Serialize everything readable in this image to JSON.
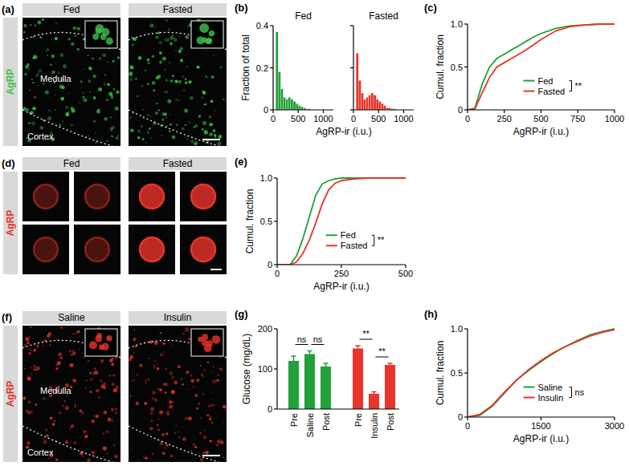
{
  "chart_data": [
    {
      "type": "histogram",
      "panel": "(b)",
      "title": "Fed",
      "x_label": "AgRP-ir (i.u.)",
      "y_label": "Fraction of total",
      "bins": [
        0,
        50,
        100,
        150,
        200,
        250,
        300,
        350,
        400,
        450,
        500,
        550,
        600,
        650,
        700,
        750,
        800,
        850,
        900,
        950,
        1000
      ],
      "values": [
        0,
        0.37,
        0.18,
        0.1,
        0.06,
        0.05,
        0.06,
        0.05,
        0.04,
        0.03,
        0.02,
        0.015,
        0.01,
        0.005,
        0.005,
        0,
        0,
        0,
        0,
        0
      ],
      "color": "#23a03a",
      "xlim": [
        0,
        1200
      ],
      "xticks": [
        0,
        500,
        1000
      ],
      "ylim": [
        0,
        0.4
      ],
      "yticks": [
        0,
        0.2,
        0.4
      ]
    },
    {
      "type": "histogram",
      "title": "Fasted",
      "bins": [
        0,
        50,
        100,
        150,
        200,
        250,
        300,
        350,
        400,
        450,
        500,
        550,
        600,
        650,
        700,
        750,
        800,
        850,
        900,
        950,
        1000
      ],
      "values": [
        0,
        0.27,
        0.14,
        0.08,
        0.05,
        0.06,
        0.07,
        0.08,
        0.07,
        0.05,
        0.04,
        0.03,
        0.02,
        0.01,
        0.01,
        0.005,
        0.005,
        0,
        0,
        0
      ],
      "color": "#e8342b",
      "xlim": [
        0,
        1200
      ],
      "xticks": [
        0,
        500,
        1000
      ],
      "ylim": [
        0,
        0.4
      ],
      "yticks": [
        0,
        0.2,
        0.4
      ],
      "tick_labels": "x"
    },
    {
      "type": "line",
      "panel": "(c)",
      "x_label": "AgRP-ir (i.u.)",
      "y_label": "Cumul. fraction",
      "x": [
        0,
        50,
        100,
        150,
        200,
        250,
        300,
        350,
        400,
        450,
        500,
        600,
        700,
        800,
        900,
        1000
      ],
      "series": [
        {
          "name": "Fed",
          "color": "#23a03a",
          "values": [
            0,
            0.02,
            0.3,
            0.5,
            0.6,
            0.65,
            0.7,
            0.75,
            0.8,
            0.85,
            0.89,
            0.95,
            0.98,
            0.99,
            1,
            1
          ]
        },
        {
          "name": "Fasted",
          "color": "#e8342b",
          "values": [
            0,
            0.01,
            0.2,
            0.38,
            0.5,
            0.55,
            0.6,
            0.65,
            0.7,
            0.76,
            0.82,
            0.92,
            0.97,
            0.99,
            1,
            1
          ]
        }
      ],
      "xlim": [
        0,
        1000
      ],
      "xticks": [
        0,
        250,
        500,
        750,
        1000
      ],
      "ylim": [
        0,
        1
      ],
      "yticks": [
        0,
        0.5,
        {
          "value": 1,
          "label": "1.0"
        }
      ],
      "legend": "bottom-right",
      "annotations": [
        "**"
      ]
    },
    {
      "type": "line",
      "panel": "(e)",
      "x_label": "AgRP-ir (i.u.)",
      "y_label": "Cumul. fraction",
      "x": [
        0,
        50,
        75,
        100,
        125,
        150,
        175,
        200,
        225,
        250,
        300,
        350,
        400,
        500
      ],
      "series": [
        {
          "name": "Fed",
          "color": "#23a03a",
          "values": [
            0,
            0,
            0.1,
            0.3,
            0.55,
            0.8,
            0.93,
            0.97,
            0.99,
            1,
            1,
            1,
            1,
            1
          ]
        },
        {
          "name": "Fasted",
          "color": "#e8342b",
          "values": [
            0,
            0,
            0.03,
            0.13,
            0.28,
            0.48,
            0.7,
            0.86,
            0.94,
            0.97,
            0.99,
            1,
            1,
            1
          ]
        }
      ],
      "xlim": [
        0,
        500
      ],
      "xticks": [
        0,
        250,
        500
      ],
      "ylim": [
        0,
        1
      ],
      "yticks": [
        0,
        0.5,
        {
          "value": 1,
          "label": "1.0"
        }
      ],
      "legend": "bottom-right",
      "annotations": [
        "**"
      ]
    },
    {
      "type": "bar",
      "panel": "(g)",
      "y_label": "Glucose (mg/dL)",
      "categories": [
        "Pre",
        "Saline",
        "Post",
        "Pre",
        "Insulin",
        "Post"
      ],
      "values": [
        120,
        137,
        106,
        151,
        38,
        110
      ],
      "errors": [
        12,
        8,
        8,
        7,
        5,
        4
      ],
      "colors": [
        "#23a03a",
        "#23a03a",
        "#23a03a",
        "#e8342b",
        "#e8342b",
        "#e8342b"
      ],
      "ylim": [
        0,
        200
      ],
      "yticks": [
        0,
        100,
        200
      ],
      "annotations": [
        {
          "text": "ns",
          "from": 0,
          "to": 1
        },
        {
          "text": "ns",
          "from": 1,
          "to": 2
        },
        {
          "text": "**",
          "from": 3,
          "to": 4
        },
        {
          "text": "**",
          "from": 4,
          "to": 5
        }
      ]
    },
    {
      "type": "line",
      "panel": "(h)",
      "x_label": "AgRP-ir (i.u.)",
      "y_label": "Cumul. fraction",
      "x": [
        0,
        250,
        500,
        750,
        1000,
        1250,
        1500,
        1750,
        2000,
        2250,
        2500,
        2750,
        3000
      ],
      "series": [
        {
          "name": "Saline",
          "color": "#23a03a",
          "values": [
            0,
            0.02,
            0.12,
            0.27,
            0.42,
            0.53,
            0.63,
            0.72,
            0.8,
            0.87,
            0.93,
            0.97,
            1
          ]
        },
        {
          "name": "Insulin",
          "color": "#e8342b",
          "values": [
            0,
            0.03,
            0.13,
            0.28,
            0.42,
            0.54,
            0.64,
            0.73,
            0.8,
            0.86,
            0.92,
            0.96,
            0.99
          ]
        }
      ],
      "xlim": [
        0,
        3000
      ],
      "xticks": [
        0,
        1500,
        3000
      ],
      "ylim": [
        0,
        1
      ],
      "yticks": [
        0,
        0.5,
        {
          "value": 1,
          "label": "1.0"
        }
      ],
      "legend": "bottom-right",
      "annotations": [
        "ns"
      ]
    }
  ],
  "images": [
    {
      "panel": "(a)",
      "stain": "AgRP",
      "color": "#3cc24a",
      "conditions": [
        "Fed",
        "Fasted"
      ],
      "regions": [
        "Medulla",
        "Cortex"
      ]
    },
    {
      "panel": "(d)",
      "stain": "AgRP",
      "color": "#e8342b",
      "conditions": [
        "Fed",
        "Fasted"
      ]
    },
    {
      "panel": "(f)",
      "stain": "AgRP",
      "color": "#e8342b",
      "conditions": [
        "Saline",
        "Insulin"
      ],
      "regions": [
        "Medulla",
        "Cortex"
      ]
    }
  ]
}
